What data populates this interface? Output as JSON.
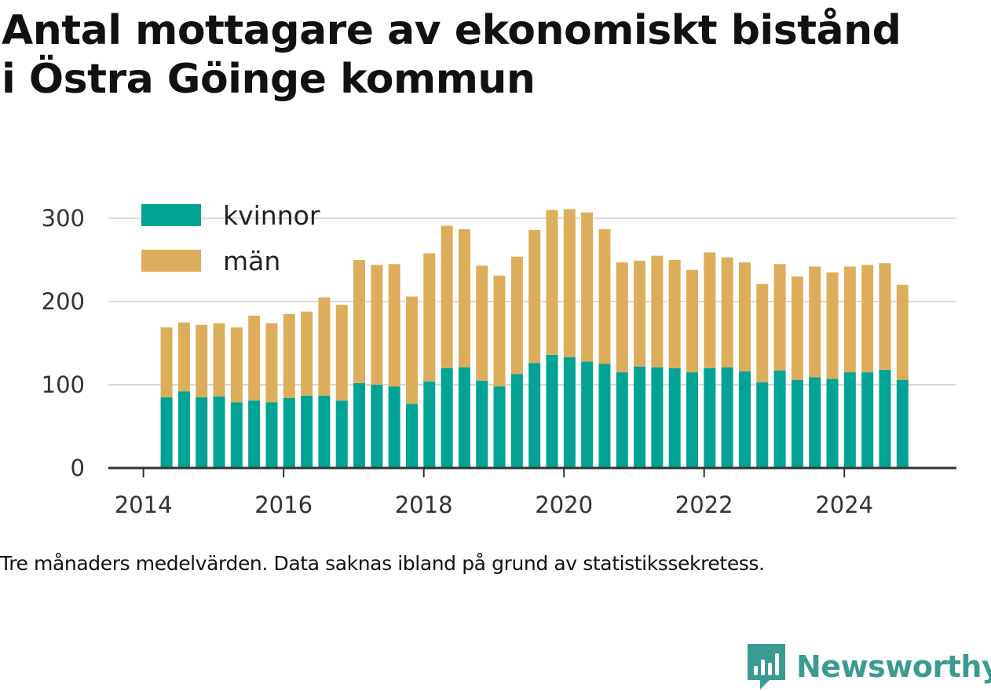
{
  "title_line1": "Antal mottagare av ekonomiskt bistånd",
  "title_line2": "i Östra Göinge kommun",
  "note": "Tre månaders medelvärden. Data saknas ibland på grund av statistikssekretess.",
  "brand": {
    "name": "Newsworthy",
    "icon": "newsworthy-logo-icon",
    "color": "#3b9b93"
  },
  "colors": {
    "kvinnor": "#00a394",
    "man": "#dcae5c",
    "grid": "#d9d9d9",
    "axis": "#333333"
  },
  "chart_data": {
    "type": "bar",
    "stacked": true,
    "title": "Antal mottagare av ekonomiskt bistånd i Östra Göinge kommun",
    "xlabel": "",
    "ylabel": "",
    "ylim": [
      0,
      300
    ],
    "yticks": [
      0,
      100,
      200,
      300
    ],
    "xticks": [
      2014,
      2016,
      2018,
      2020,
      2022,
      2024
    ],
    "xlim": [
      2013.5,
      2025.6
    ],
    "grid": "horizontal",
    "legend_position": "top-left",
    "x": [
      2014.33,
      2014.58,
      2014.83,
      2015.08,
      2015.33,
      2015.58,
      2015.83,
      2016.08,
      2016.33,
      2016.58,
      2016.83,
      2017.08,
      2017.33,
      2017.58,
      2017.83,
      2018.08,
      2018.33,
      2018.58,
      2018.83,
      2019.08,
      2019.33,
      2019.58,
      2019.83,
      2020.08,
      2020.33,
      2020.58,
      2020.83,
      2021.08,
      2021.33,
      2021.58,
      2021.83,
      2022.08,
      2022.33,
      2022.58,
      2022.83,
      2023.08,
      2023.33,
      2023.58,
      2023.83,
      2024.08,
      2024.33,
      2024.58,
      2024.83
    ],
    "series": [
      {
        "name": "kvinnor",
        "values": [
          85,
          92,
          85,
          86,
          79,
          81,
          79,
          84,
          87,
          87,
          81,
          102,
          100,
          98,
          77,
          104,
          120,
          121,
          105,
          98,
          113,
          126,
          136,
          133,
          128,
          125,
          115,
          122,
          121,
          120,
          115,
          120,
          121,
          116,
          103,
          117,
          106,
          109,
          107,
          115,
          115,
          118,
          106
        ]
      },
      {
        "name": "män",
        "values": [
          84,
          83,
          87,
          88,
          90,
          102,
          95,
          101,
          101,
          118,
          115,
          148,
          144,
          147,
          129,
          154,
          171,
          166,
          138,
          133,
          141,
          160,
          174,
          178,
          179,
          162,
          132,
          127,
          134,
          130,
          123,
          139,
          132,
          131,
          118,
          128,
          124,
          133,
          128,
          127,
          129,
          128,
          114
        ]
      }
    ]
  }
}
